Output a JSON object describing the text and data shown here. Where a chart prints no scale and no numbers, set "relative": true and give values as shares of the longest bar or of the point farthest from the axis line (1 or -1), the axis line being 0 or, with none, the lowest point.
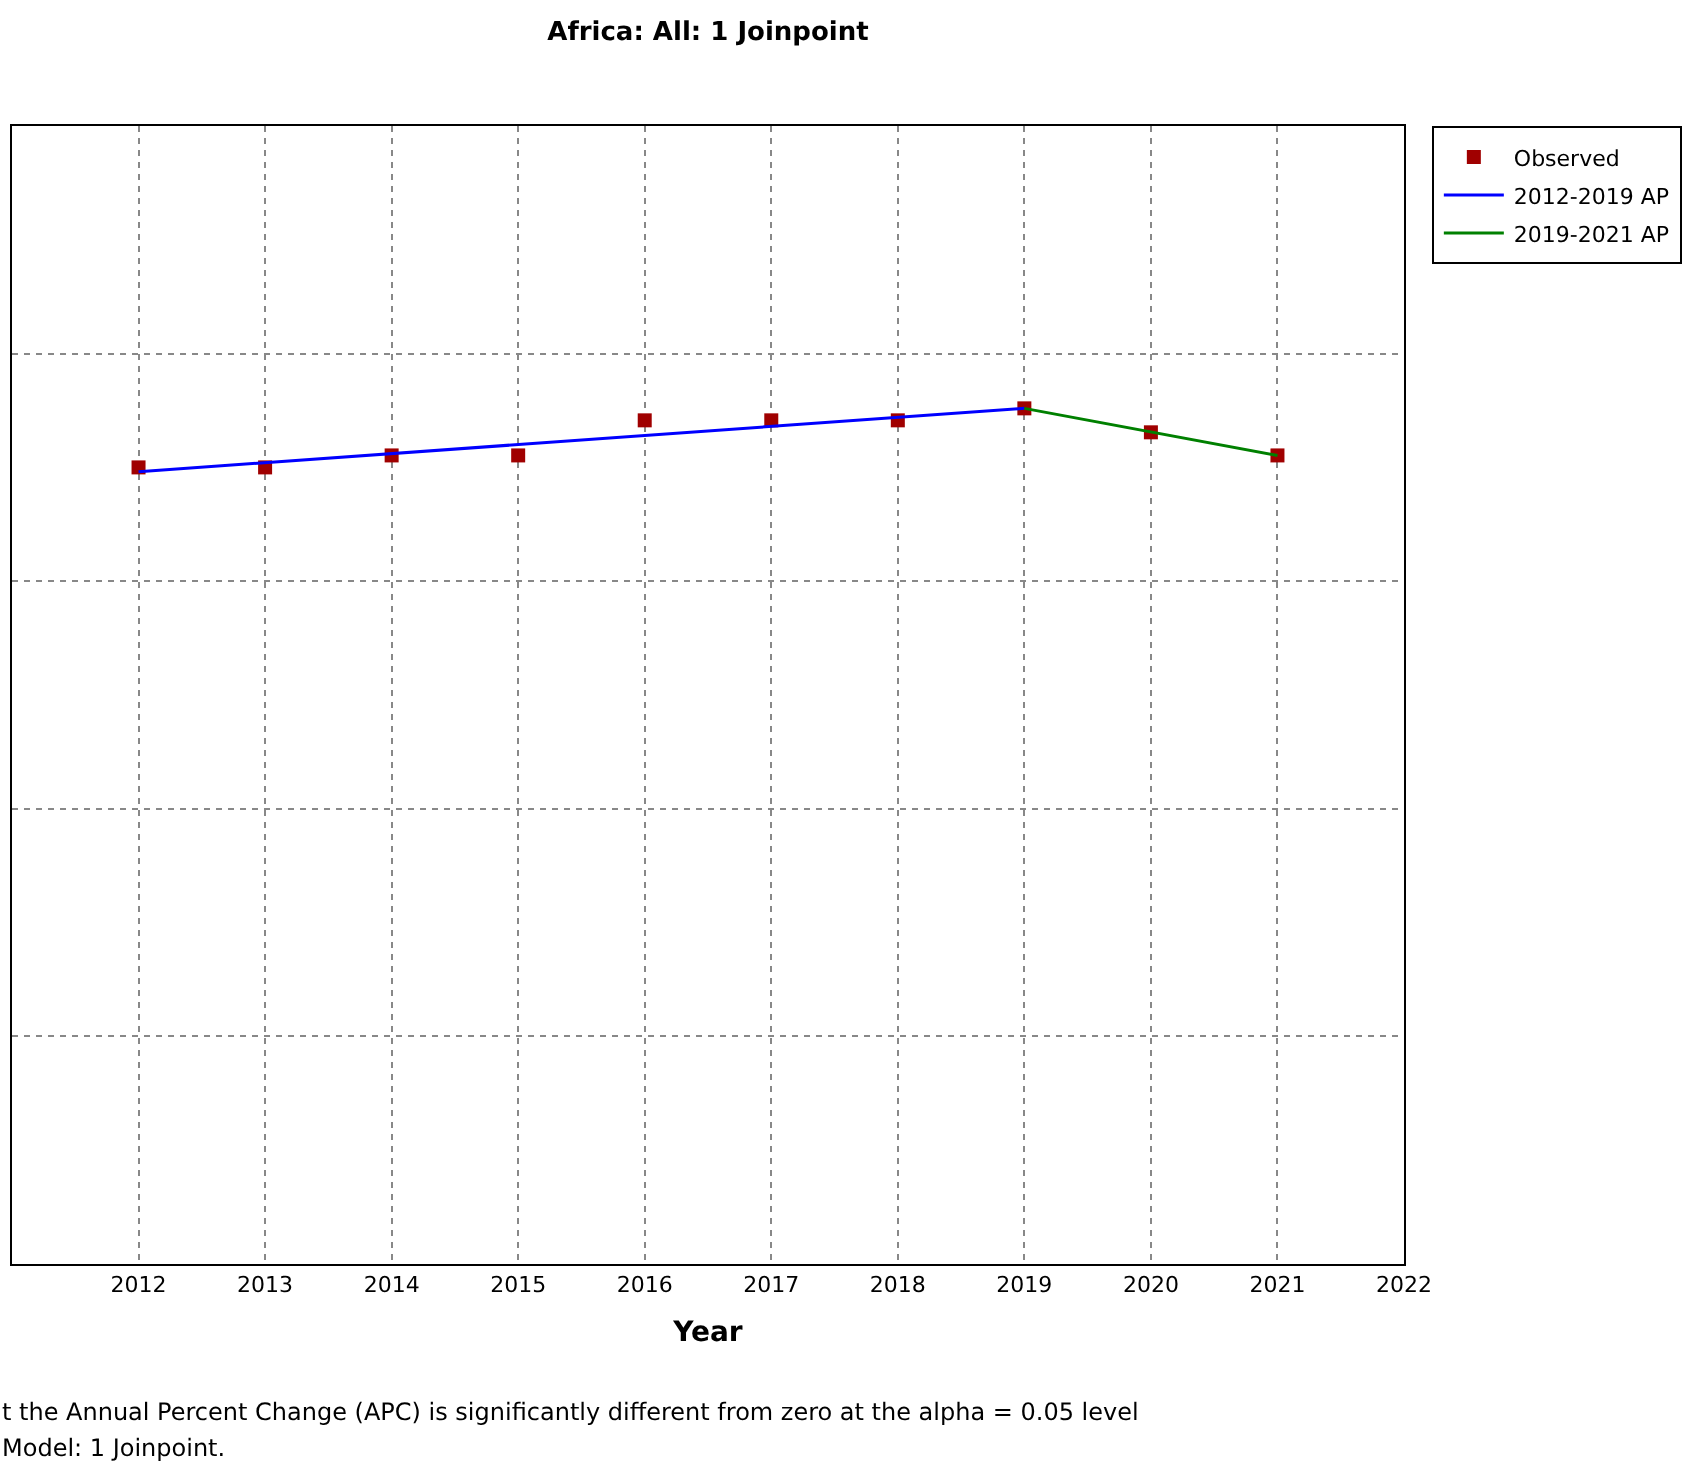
{
  "chart_data": {
    "type": "line",
    "title": "Africa: All: 1 Joinpoint",
    "xlabel": "Year",
    "relative": true,
    "xlim": [
      2011,
      2022
    ],
    "xticks": [
      2012,
      2013,
      2014,
      2015,
      2016,
      2017,
      2018,
      2019,
      2020,
      2021,
      2022
    ],
    "grid": true,
    "legend": "top right",
    "line_style": "solid",
    "series": [
      {
        "name": "Observed",
        "type": "scatter",
        "marker": "square",
        "color": "#a00000",
        "x": [
          2012,
          2013,
          2014,
          2015,
          2016,
          2017,
          2018,
          2019,
          2020,
          2021
        ],
        "values": [
          0.931,
          0.931,
          0.945,
          0.945,
          0.986,
          0.986,
          0.986,
          1,
          0.972,
          0.945
        ]
      },
      {
        "name": "2012-2019 AP",
        "type": "line",
        "color": "#0000ff",
        "x": [
          2012,
          2019
        ],
        "values": [
          0.926,
          1
        ]
      },
      {
        "name": "2019-2021 AP",
        "type": "line",
        "color": "#008000",
        "x": [
          2019,
          2021
        ],
        "values": [
          1,
          0.945
        ]
      }
    ],
    "annotations": [
      "t the Annual Percent Change (APC) is significantly different from zero at the alpha = 0.05 level",
      "Model: 1 Joinpoint."
    ]
  }
}
